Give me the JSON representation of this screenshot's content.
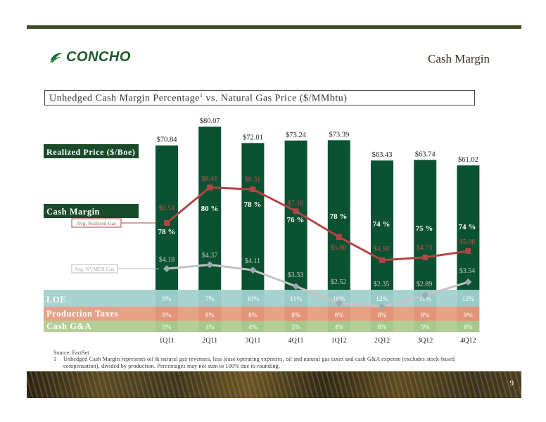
{
  "slide": {
    "title": "Cash Margin",
    "logo_text": "CONCHO",
    "chart_title": "Unhedged Cash Margin Percentage",
    "chart_title_sup": "1",
    "chart_title_suffix": " vs. Natural Gas Price ($/MMbtu)",
    "source": "Source: FactSet",
    "footnote_num": "1",
    "footnote": "Unhedged Cash Margin represents oil & natural gas revenues, less lease operating expenses, oil and natural gas taxes and cash G&A expense (excludes stock-based compensation), divided by production. Percentages may not sum to 100% due to rounding.",
    "page_number": "9"
  },
  "colors": {
    "cash_margin": "#0b5232",
    "loe": "#a7d3d0",
    "production_taxes": "#e7a187",
    "cash_ga": "#b4cf96",
    "realized_line": "#b54444",
    "nymex_line": "#c4c4c4",
    "label_bg": "#1a4a2a"
  },
  "chart_data": {
    "type": "bar",
    "categories": [
      "1Q11",
      "2Q11",
      "3Q11",
      "4Q11",
      "1Q12",
      "2Q12",
      "3Q12",
      "4Q12"
    ],
    "realized_price_label": "Realized Price ($/Boe)",
    "realized_price_values": [
      "$70.84",
      "$80.07",
      "$72.01",
      "$73.24",
      "$73.39",
      "$63.43",
      "$63.74",
      "$61.02"
    ],
    "realized_price": [
      70.84,
      80.07,
      72.01,
      73.24,
      73.39,
      63.43,
      63.74,
      61.02
    ],
    "series": [
      {
        "name": "Cash Margin",
        "pct_labels": [
          "78 %",
          "80 %",
          "78 %",
          "76 %",
          "78 %",
          "74 %",
          "75 %",
          "74 %"
        ]
      },
      {
        "name": "LOE",
        "pct_labels": [
          "9%",
          "7%",
          "10%",
          "11%",
          "10%",
          "12%",
          "11%",
          "12%"
        ]
      },
      {
        "name": "Production Taxes",
        "pct_labels": [
          "8%",
          "8%",
          "8%",
          "8%",
          "8%",
          "8%",
          "8%",
          "9%"
        ]
      },
      {
        "name": "Cash G&A",
        "pct_labels": [
          "5%",
          "4%",
          "4%",
          "5%",
          "4%",
          "6%",
          "5%",
          "6%"
        ]
      }
    ],
    "lines": [
      {
        "name": "Avg. Realized Gas",
        "values": [
          6.54,
          8.41,
          8.31,
          7.16,
          5.8,
          4.58,
          4.73,
          5.06
        ],
        "labels": [
          "$6.54",
          "$8.41",
          "$8.31",
          "$7.16",
          "$5.80",
          "$4.58",
          "$4.73",
          "$5.06"
        ]
      },
      {
        "name": "Avg. NYMEX Gas",
        "values": [
          4.18,
          4.37,
          4.11,
          3.33,
          2.52,
          2.35,
          2.89,
          3.54
        ],
        "labels": [
          "$4.18",
          "$4.37",
          "$4.11",
          "$3.33",
          "$2.52",
          "$2.35",
          "$2.89",
          "$3.54"
        ]
      }
    ],
    "legend": [
      "Cash Margin",
      "LOE",
      "Production Taxes",
      "Cash G&A"
    ]
  }
}
